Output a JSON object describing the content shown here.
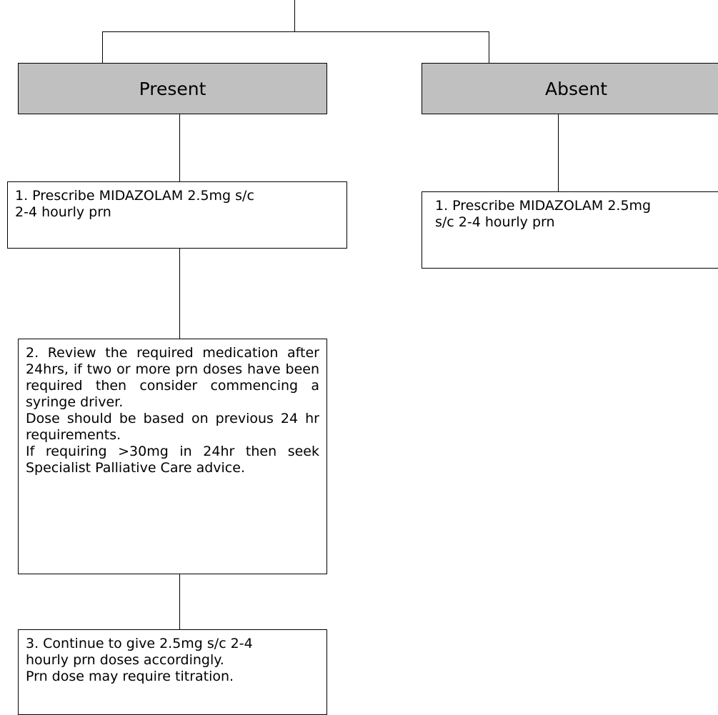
{
  "branches": {
    "present": {
      "label": "Present",
      "steps": [
        {
          "lines": [
            "1. Prescribe MIDAZOLAM 2.5mg s/c",
            "2-4 hourly prn"
          ]
        },
        {
          "paragraphs": [
            "2. Review the required medication after 24hrs, if two or more prn doses have been required then consider commencing a syringe driver.",
            "Dose should be based on previous 24 hr requirements.",
            "If requiring >30mg in 24hr then seek Specialist Palliative Care advice."
          ]
        },
        {
          "lines": [
            "3. Continue to give 2.5mg s/c 2-4",
            "hourly prn doses accordingly.",
            "Prn dose may require titration."
          ]
        }
      ]
    },
    "absent": {
      "label": "Absent",
      "steps": [
        {
          "lines": [
            "1. Prescribe MIDAZOLAM 2.5mg",
            "s/c 2-4 hourly prn"
          ]
        }
      ]
    }
  }
}
